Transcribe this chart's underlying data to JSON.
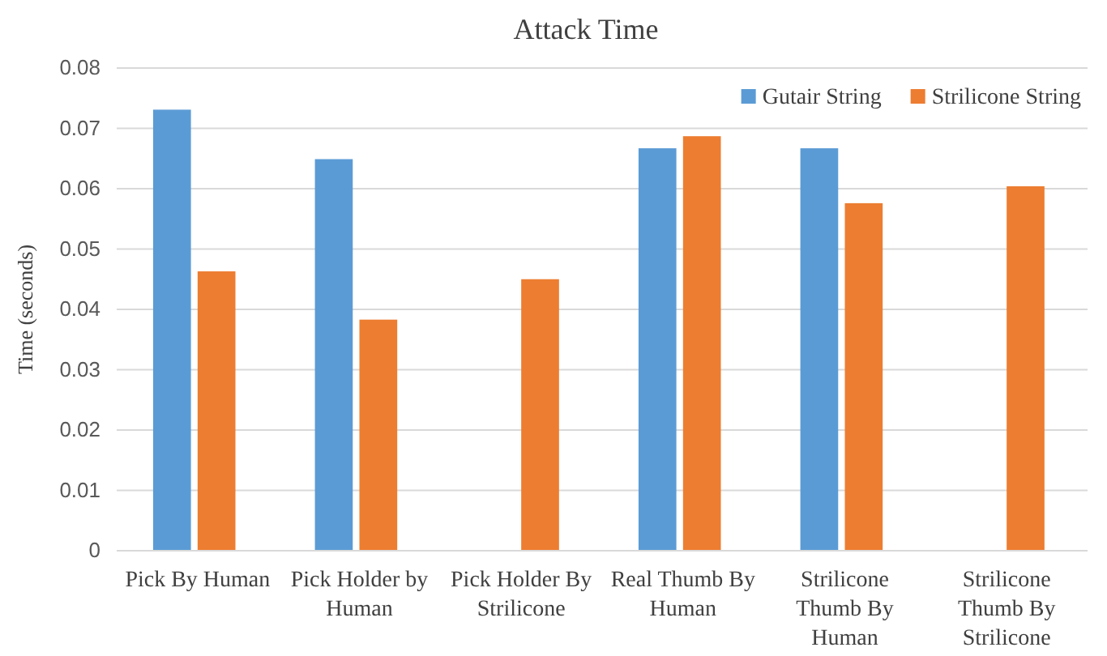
{
  "chart_data": {
    "type": "bar",
    "title": "Attack Time",
    "ylabel": "Time (seconds)",
    "categories": [
      "Pick By Human",
      "Pick Holder by Human",
      "Pick Holder By Strilicone",
      "Real Thumb By Human",
      "Strilicone Thumb By Human",
      "Strilicone Thumb By Strilicone"
    ],
    "series": [
      {
        "name": "Gutair String",
        "color": "#5b9bd5",
        "values": [
          0.0731,
          0.0649,
          null,
          0.0667,
          0.0667,
          null
        ]
      },
      {
        "name": "Strilicone String",
        "color": "#ed7d31",
        "values": [
          0.0463,
          0.0383,
          0.045,
          0.0687,
          0.0576,
          0.0604
        ]
      }
    ],
    "ylim": [
      0,
      0.08
    ],
    "yticks": [
      {
        "value": 0,
        "label": "0"
      },
      0.01,
      0.02,
      0.03,
      0.04,
      0.05,
      0.06,
      0.07,
      0.08
    ],
    "grid": "y",
    "legend": "top right"
  }
}
